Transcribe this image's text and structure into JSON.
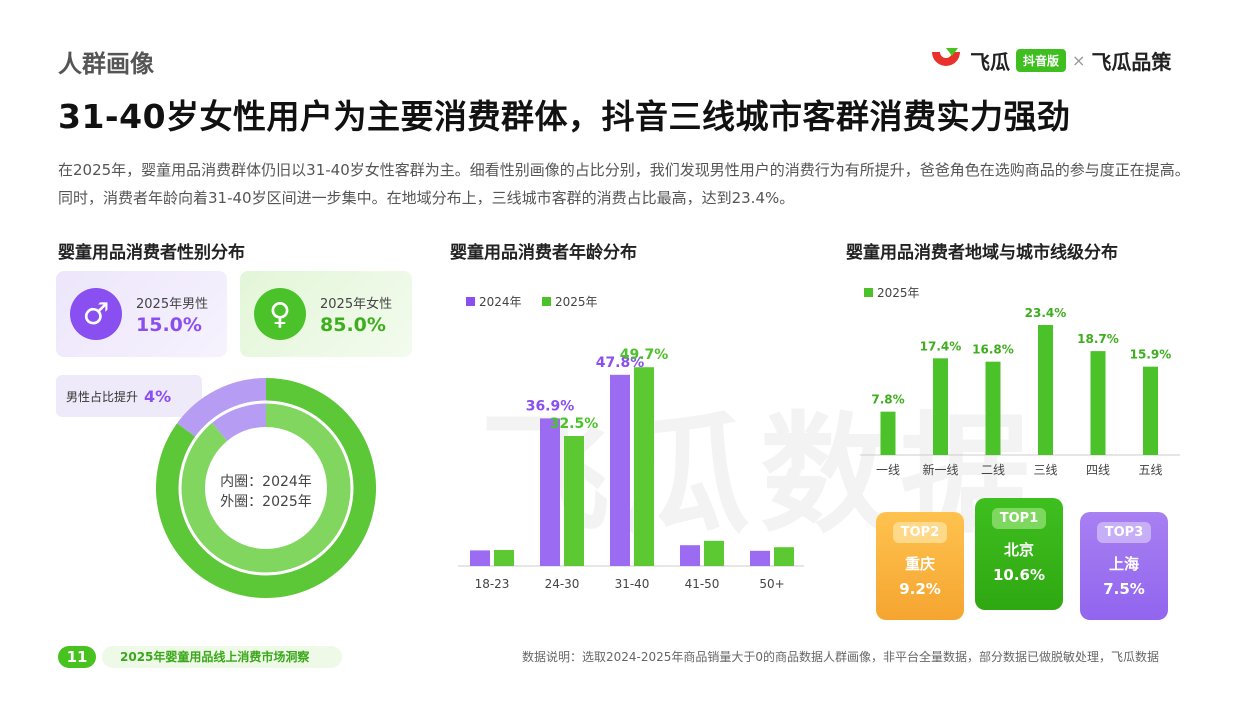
{
  "section_label": "人群画像",
  "headline": "31-40岁女性用户为主要消费群体，抖音三线城市客群消费实力强劲",
  "intro": "在2025年，婴童用品消费群体仍旧以31-40岁女性客群为主。细看性别画像的占比分别，我们发现男性用户的消费行为有所提升，爸爸角色在选购商品的参与度正在提高。同时，消费者年龄向着31-40岁区间进一步集中。在地域分布上，三线城市客群的消费占比最高，达到23.4%。",
  "logo": {
    "brand": "飞瓜",
    "badge": "抖音版",
    "sep": "×",
    "partner": "飞瓜品策"
  },
  "watermark": "飞瓜数据",
  "colors": {
    "purple": "#8a4ff0",
    "green": "#4cc22a",
    "orange": "#f7a93a"
  },
  "chart_data": [
    {
      "type": "pie",
      "title": "婴童用品消费者性别分布",
      "cards": [
        {
          "icon": "male-icon",
          "label": "2025年男性",
          "value": "15.0%"
        },
        {
          "icon": "female-icon",
          "label": "2025年女性",
          "value": "85.0%"
        }
      ],
      "male_rise_label": "男性占比提升",
      "male_rise_value": "4%",
      "center_inner": "内圈：2024年",
      "center_outer": "外圈：2025年",
      "rings": [
        {
          "name": "2024",
          "male": 11.0,
          "female": 89.0
        },
        {
          "name": "2025",
          "male": 15.0,
          "female": 85.0
        }
      ]
    },
    {
      "type": "bar",
      "title": "婴童用品消费者年龄分布",
      "categories": [
        "18-23",
        "24-30",
        "31-40",
        "41-50",
        "50+"
      ],
      "series": [
        {
          "name": "2024年",
          "values": [
            3.9,
            36.9,
            47.8,
            5.2,
            3.8
          ]
        },
        {
          "name": "2025年",
          "values": [
            4.0,
            32.5,
            49.7,
            6.3,
            4.7
          ]
        }
      ],
      "labeled": [
        {
          "series": 0,
          "index": 1,
          "text": "36.9%"
        },
        {
          "series": 1,
          "index": 1,
          "text": "32.5%"
        },
        {
          "series": 0,
          "index": 2,
          "text": "47.8%"
        },
        {
          "series": 1,
          "index": 2,
          "text": "49.7%"
        }
      ]
    },
    {
      "type": "bar",
      "title": "婴童用品消费者地域与城市线级分布",
      "legend": "2025年",
      "categories": [
        "一线",
        "新一线",
        "二线",
        "三线",
        "四线",
        "五线"
      ],
      "values": [
        7.8,
        17.4,
        16.8,
        23.4,
        18.7,
        15.9
      ],
      "labels": [
        "7.8%",
        "17.4%",
        "16.8%",
        "23.4%",
        "18.7%",
        "15.9%"
      ],
      "top_cities": [
        {
          "rank": "TOP2",
          "city": "重庆",
          "value": "9.2%"
        },
        {
          "rank": "TOP1",
          "city": "北京",
          "value": "10.6%"
        },
        {
          "rank": "TOP3",
          "city": "上海",
          "value": "7.5%"
        }
      ]
    }
  ],
  "footer": {
    "page": "11",
    "title": "2025年婴童用品线上消费市场洞察",
    "note": "数据说明：选取2024-2025年商品销量大于0的商品数据人群画像，非平台全量数据，部分数据已做脱敏处理，飞瓜数据"
  }
}
